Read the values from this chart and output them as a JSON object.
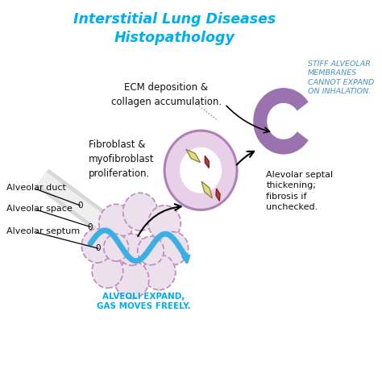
{
  "title_color": "#00AEEF",
  "bg_color": "#FFFFFF",
  "alveolar_cluster_color": "#C090C0",
  "alveolar_cluster_fill": "#EDE0ED",
  "duct_color": "#3AAFE4",
  "circle_fill": "#E8D0E8",
  "circle_stroke": "#B080B8",
  "stiff_membrane_color": "#9B72B0",
  "cyan_text_color": "#00AEEF",
  "label_color": "#111111",
  "stiff_text_color": "#4A90B8",
  "annotations": {
    "title1": "Interstitial Lung Diseases",
    "title2": "Histopathology",
    "ecm": "ECM deposition &\ncollagen accumulation.",
    "fibroblast": "Fibroblast &\nmyofibroblast\nproliferation.",
    "alveolar_duct": "Alveolar duct",
    "alveolar_space": "Alveolar space",
    "alveolar_septum": "Alveolar septum",
    "alveoli_expand": "ALVEOLI EXPAND,\nGAS MOVES FREELY.",
    "stiff_alveolar": "STIFF ALVEOLAR\nMEMBRANES\nCANNOT EXPAND\nON INHALATION.",
    "septal_thickening": "Alevolar septal\nthickening;\nfibrosis if\nunchecked."
  }
}
